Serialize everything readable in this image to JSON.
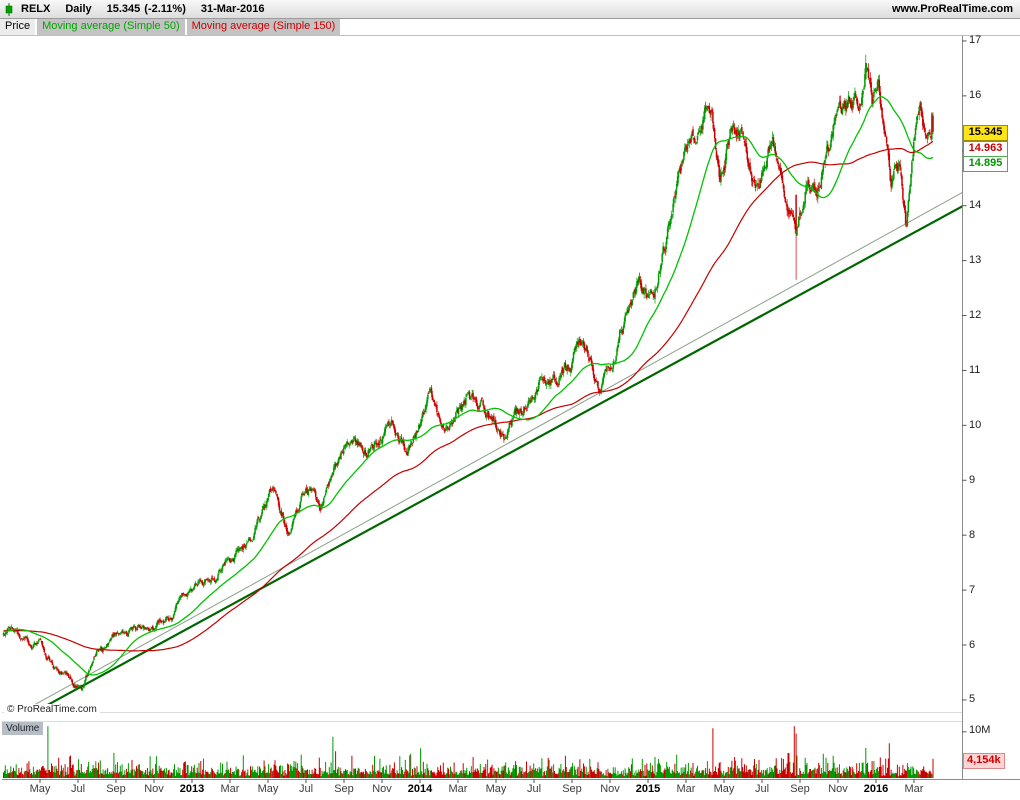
{
  "header": {
    "symbol": "RELX",
    "timeframe": "Daily",
    "price": "15.345",
    "change": "(-2.11%)",
    "date": "31-Mar-2016",
    "website": "www.ProRealTime.com"
  },
  "toolbar": {
    "price_tab": "Price",
    "ma50_tab": "Moving average (Simple 50)",
    "ma150_tab": "Moving average (Simple 150)"
  },
  "price_axis": {
    "ticks": [
      17,
      16,
      15,
      14,
      13,
      12,
      11,
      10,
      9,
      8,
      7,
      6,
      5
    ],
    "last_price_label": "15.345",
    "ma150_label": "14.963",
    "ma50_label": "14.895"
  },
  "volume_panel": {
    "tab": "Volume",
    "scale_label": "10M",
    "last_volume_label": "4,154k"
  },
  "x_axis": {
    "labels": [
      {
        "text": "May",
        "t": 1
      },
      {
        "text": "Jul",
        "t": 3
      },
      {
        "text": "Sep",
        "t": 5
      },
      {
        "text": "Nov",
        "t": 7
      },
      {
        "text": "2013",
        "t": 9,
        "year": true
      },
      {
        "text": "Mar",
        "t": 11
      },
      {
        "text": "May",
        "t": 13
      },
      {
        "text": "Jul",
        "t": 15
      },
      {
        "text": "Sep",
        "t": 17
      },
      {
        "text": "Nov",
        "t": 19
      },
      {
        "text": "2014",
        "t": 21,
        "year": true
      },
      {
        "text": "Mar",
        "t": 23
      },
      {
        "text": "May",
        "t": 25
      },
      {
        "text": "Jul",
        "t": 27
      },
      {
        "text": "Sep",
        "t": 29
      },
      {
        "text": "Nov",
        "t": 31
      },
      {
        "text": "2015",
        "t": 33,
        "year": true
      },
      {
        "text": "Mar",
        "t": 35
      },
      {
        "text": "May",
        "t": 37
      },
      {
        "text": "Jul",
        "t": 39
      },
      {
        "text": "Sep",
        "t": 41
      },
      {
        "text": "Nov",
        "t": 43
      },
      {
        "text": "2016",
        "t": 45,
        "year": true
      },
      {
        "text": "Mar",
        "t": 47
      }
    ]
  },
  "watermark": "© ProRealTime.com",
  "colors": {
    "up": "#009a00",
    "down": "#cc0000",
    "ma50": "#00c300",
    "ma150": "#c40000",
    "last_price_box_bg": "#ffe416",
    "volume_box_bg": "#ffd4d4"
  },
  "chart_data": {
    "type": "candlestick",
    "symbol": "RELX",
    "timeframe": "Daily",
    "as_of": "31-Mar-2016",
    "t_unit": "months since 2012-04-01",
    "ylim": [
      4.78,
      17.09
    ],
    "y_ticks": [
      5,
      6,
      7,
      8,
      9,
      10,
      11,
      12,
      13,
      14,
      15,
      16,
      17
    ],
    "x_tick_labels": [
      "May",
      "Jul",
      "Sep",
      "Nov",
      "2013",
      "Mar",
      "May",
      "Jul",
      "Sep",
      "Nov",
      "2014",
      "Mar",
      "May",
      "Jul",
      "Sep",
      "Nov",
      "2015",
      "Mar",
      "May",
      "Jul",
      "Sep",
      "Nov",
      "2016",
      "Mar"
    ],
    "last": {
      "close": 15.345,
      "change_pct": -2.11,
      "volume_k": 4154
    },
    "moving_averages": [
      {
        "name": "Simple 50",
        "last": 14.895
      },
      {
        "name": "Simple 150",
        "last": 14.963
      }
    ],
    "price_path": [
      {
        "t": 0,
        "p": 6.15
      },
      {
        "t": 1,
        "p": 6.0
      },
      {
        "t": 2,
        "p": 5.55
      },
      {
        "t": 3.2,
        "p": 5.18
      },
      {
        "t": 4,
        "p": 5.8
      },
      {
        "t": 5,
        "p": 6.2
      },
      {
        "t": 6.5,
        "p": 6.35
      },
      {
        "t": 8,
        "p": 6.55
      },
      {
        "t": 9,
        "p": 7.05
      },
      {
        "t": 10,
        "p": 7.3
      },
      {
        "t": 11.5,
        "p": 7.75
      },
      {
        "t": 12.5,
        "p": 8.25
      },
      {
        "t": 13.3,
        "p": 8.85
      },
      {
        "t": 14.2,
        "p": 8.1
      },
      {
        "t": 15,
        "p": 8.75
      },
      {
        "t": 15.8,
        "p": 8.55
      },
      {
        "t": 17,
        "p": 9.45
      },
      {
        "t": 18.5,
        "p": 9.7
      },
      {
        "t": 19.6,
        "p": 10.0
      },
      {
        "t": 20.3,
        "p": 9.65
      },
      {
        "t": 21.5,
        "p": 10.4
      },
      {
        "t": 22.3,
        "p": 9.75
      },
      {
        "t": 23.5,
        "p": 10.45
      },
      {
        "t": 24.5,
        "p": 10.15
      },
      {
        "t": 25.5,
        "p": 9.75
      },
      {
        "t": 26.5,
        "p": 10.45
      },
      {
        "t": 27.5,
        "p": 10.85
      },
      {
        "t": 28.5,
        "p": 10.95
      },
      {
        "t": 29.5,
        "p": 11.4
      },
      {
        "t": 30.5,
        "p": 10.65
      },
      {
        "t": 31.5,
        "p": 11.8
      },
      {
        "t": 32.5,
        "p": 12.6
      },
      {
        "t": 33.2,
        "p": 12.45
      },
      {
        "t": 34,
        "p": 13.4
      },
      {
        "t": 34.8,
        "p": 14.6
      },
      {
        "t": 35.8,
        "p": 15.45
      },
      {
        "t": 36.3,
        "p": 15.85
      },
      {
        "t": 36.8,
        "p": 14.75
      },
      {
        "t": 37.4,
        "p": 15.5
      },
      {
        "t": 38.3,
        "p": 14.9
      },
      {
        "t": 38.8,
        "p": 14.4
      },
      {
        "t": 39.4,
        "p": 15.1
      },
      {
        "t": 39.9,
        "p": 14.85
      },
      {
        "t": 40.8,
        "p": 13.7
      },
      {
        "t": 41.3,
        "p": 14.35
      },
      {
        "t": 41.9,
        "p": 14.1
      },
      {
        "t": 42.9,
        "p": 15.6
      },
      {
        "t": 43.6,
        "p": 15.9
      },
      {
        "t": 44.1,
        "p": 15.55
      },
      {
        "t": 44.45,
        "p": 16.6
      },
      {
        "t": 44.8,
        "p": 15.6
      },
      {
        "t": 45.15,
        "p": 15.95
      },
      {
        "t": 45.8,
        "p": 14.1
      },
      {
        "t": 46.2,
        "p": 14.55
      },
      {
        "t": 46.6,
        "p": 13.55
      },
      {
        "t": 47.0,
        "p": 15.05
      },
      {
        "t": 47.3,
        "p": 15.55
      },
      {
        "t": 47.6,
        "p": 15.1
      },
      {
        "t": 48,
        "p": 15.345
      }
    ],
    "pre_history": [
      {
        "t": -7.5,
        "p": 6.2
      },
      {
        "t": -5,
        "p": 6.45
      },
      {
        "t": -3,
        "p": 6.05
      },
      {
        "t": -1.5,
        "p": 6.3
      },
      {
        "t": -0.5,
        "p": 6.2
      }
    ],
    "events": [
      {
        "t": 40.8,
        "open": 14.2,
        "close": 13.55,
        "low": 12.65
      },
      {
        "t": 44.45,
        "open": 16.3,
        "close": 16.6,
        "high": 16.75
      }
    ],
    "trendlines": [
      {
        "t1": -0.5,
        "p1": 4.55,
        "t2": 49.6,
        "p2": 14.0,
        "color": "#006600",
        "width": 2.2
      },
      {
        "t1": -0.5,
        "p1": 4.68,
        "t2": 49.6,
        "p2": 14.25,
        "color": "#8a9e8a",
        "width": 1
      }
    ],
    "volume": {
      "axis_tick_m": 10,
      "typical_m": 1.8,
      "last_m": 4.154
    }
  }
}
